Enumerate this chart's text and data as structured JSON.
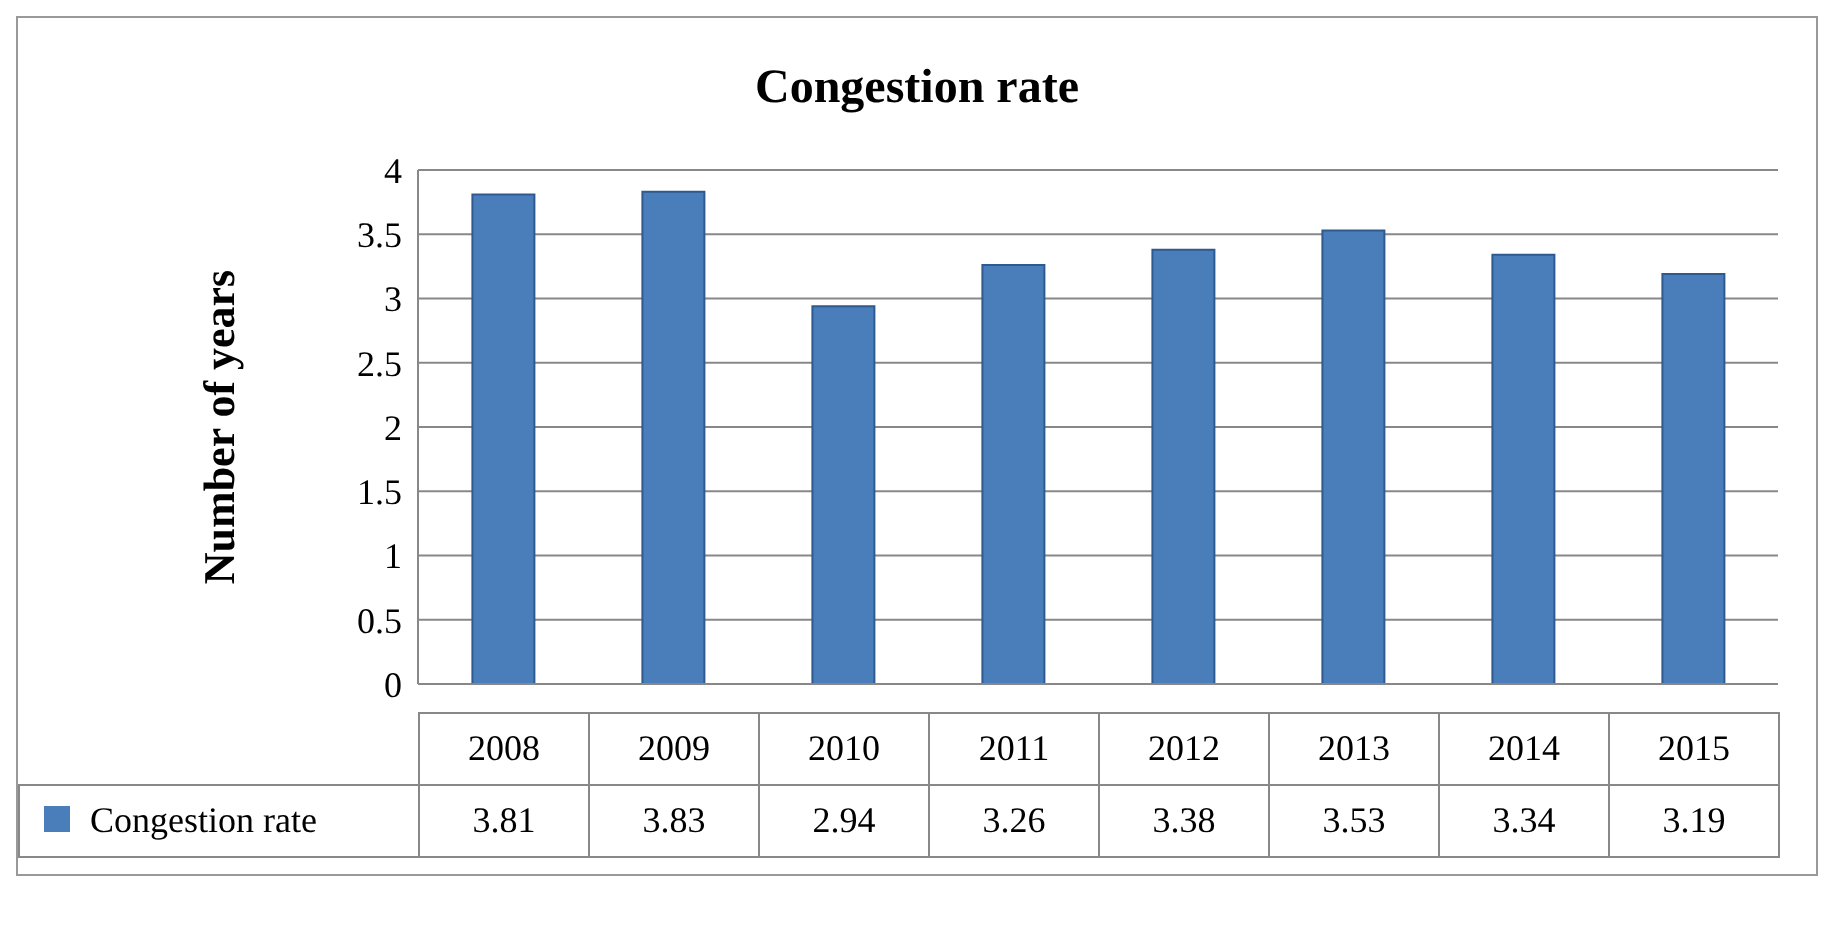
{
  "chart_data": {
    "type": "bar",
    "title": "Congestion rate",
    "ylabel": "Number of years",
    "categories": [
      "2008",
      "2009",
      "2010",
      "2011",
      "2012",
      "2013",
      "2014",
      "2015"
    ],
    "series": [
      {
        "name": "Congestion rate",
        "color": "#4a7ebb",
        "values": [
          3.81,
          3.83,
          2.94,
          3.26,
          3.38,
          3.53,
          3.34,
          3.19
        ]
      }
    ],
    "ylim": [
      0,
      4
    ],
    "yticks": [
      0,
      0.5,
      1,
      1.5,
      2,
      2.5,
      3,
      3.5,
      4
    ],
    "grid": "y",
    "legend": "bottom",
    "data_labels": true
  }
}
